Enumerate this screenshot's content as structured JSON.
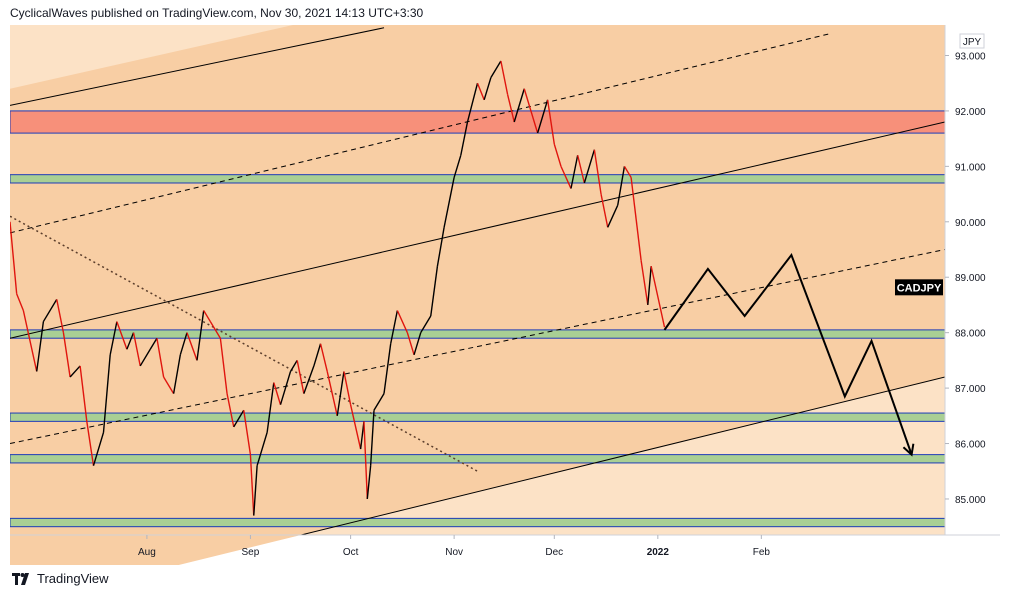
{
  "header": {
    "attribution": "CyclicalWaves published on TradingView.com, Nov 30, 2021 14:13 UTC+3:30"
  },
  "footer": {
    "brand": "TradingView",
    "logo_icon": "tradingview-logo-icon"
  },
  "colors": {
    "bg_light": "#fce2c6",
    "bg_mid": "#f8ceA4",
    "red_zone": "#f7907a",
    "green_zone": "#a9cf94",
    "zone_border": "#1d3bb8",
    "price_line": "#000000",
    "candle_up": "#000000",
    "candle_down": "#e0150e",
    "symbol_badge_bg": "#000000",
    "symbol_badge_fg": "#ffffff"
  },
  "chart_data": {
    "type": "line",
    "symbol": "CADJPY",
    "currency": "JPY",
    "price_scale": {
      "ticks": [
        "93.000",
        "92.000",
        "91.000",
        "90.000",
        "89.000",
        "88.000",
        "87.000",
        "86.000",
        "85.000"
      ],
      "tick_values": [
        93,
        92,
        91,
        90,
        89,
        88,
        87,
        86,
        85
      ]
    },
    "time_axis": {
      "labels": [
        "Aug",
        "Sep",
        "Oct",
        "Nov",
        "Dec",
        "2022",
        "Feb"
      ],
      "label_bold": [
        false,
        false,
        false,
        false,
        false,
        true,
        false
      ]
    },
    "price_series": [
      [
        "2021-06-21",
        90.0
      ],
      [
        "2021-06-23",
        88.7
      ],
      [
        "2021-06-25",
        88.4
      ],
      [
        "2021-06-29",
        87.3
      ],
      [
        "2021-07-01",
        88.2
      ],
      [
        "2021-07-05",
        88.6
      ],
      [
        "2021-07-07",
        88.0
      ],
      [
        "2021-07-09",
        87.2
      ],
      [
        "2021-07-12",
        87.4
      ],
      [
        "2021-07-14",
        86.4
      ],
      [
        "2021-07-16",
        85.6
      ],
      [
        "2021-07-19",
        86.2
      ],
      [
        "2021-07-21",
        87.6
      ],
      [
        "2021-07-23",
        88.2
      ],
      [
        "2021-07-26",
        87.7
      ],
      [
        "2021-07-28",
        88.0
      ],
      [
        "2021-07-30",
        87.4
      ],
      [
        "2021-08-02",
        87.7
      ],
      [
        "2021-08-04",
        87.9
      ],
      [
        "2021-08-06",
        87.2
      ],
      [
        "2021-08-09",
        86.9
      ],
      [
        "2021-08-11",
        87.6
      ],
      [
        "2021-08-13",
        88.0
      ],
      [
        "2021-08-16",
        87.5
      ],
      [
        "2021-08-18",
        88.4
      ],
      [
        "2021-08-20",
        88.2
      ],
      [
        "2021-08-23",
        87.9
      ],
      [
        "2021-08-25",
        86.9
      ],
      [
        "2021-08-27",
        86.3
      ],
      [
        "2021-08-30",
        86.6
      ],
      [
        "2021-09-01",
        85.8
      ],
      [
        "2021-09-02",
        84.7
      ],
      [
        "2021-09-03",
        85.6
      ],
      [
        "2021-09-06",
        86.2
      ],
      [
        "2021-09-08",
        87.1
      ],
      [
        "2021-09-10",
        86.7
      ],
      [
        "2021-09-13",
        87.3
      ],
      [
        "2021-09-15",
        87.5
      ],
      [
        "2021-09-17",
        86.9
      ],
      [
        "2021-09-20",
        87.4
      ],
      [
        "2021-09-22",
        87.8
      ],
      [
        "2021-09-24",
        87.3
      ],
      [
        "2021-09-27",
        86.5
      ],
      [
        "2021-09-29",
        87.3
      ],
      [
        "2021-10-01",
        86.7
      ],
      [
        "2021-10-04",
        85.9
      ],
      [
        "2021-10-05",
        86.4
      ],
      [
        "2021-10-06",
        85.0
      ],
      [
        "2021-10-07",
        85.6
      ],
      [
        "2021-10-08",
        86.6
      ],
      [
        "2021-10-11",
        86.9
      ],
      [
        "2021-10-13",
        87.8
      ],
      [
        "2021-10-15",
        88.4
      ],
      [
        "2021-10-18",
        88.0
      ],
      [
        "2021-10-20",
        87.6
      ],
      [
        "2021-10-22",
        88.0
      ],
      [
        "2021-10-25",
        88.3
      ],
      [
        "2021-10-27",
        89.2
      ],
      [
        "2021-10-29",
        89.9
      ],
      [
        "2021-11-01",
        90.8
      ],
      [
        "2021-11-03",
        91.2
      ],
      [
        "2021-11-05",
        91.8
      ],
      [
        "2021-11-08",
        92.5
      ],
      [
        "2021-11-10",
        92.2
      ],
      [
        "2021-11-12",
        92.6
      ],
      [
        "2021-11-15",
        92.9
      ],
      [
        "2021-11-17",
        92.3
      ],
      [
        "2021-11-19",
        91.8
      ],
      [
        "2021-11-22",
        92.4
      ],
      [
        "2021-11-24",
        92.0
      ],
      [
        "2021-11-26",
        91.6
      ],
      [
        "2021-11-29",
        92.2
      ],
      [
        "2021-12-01",
        91.4
      ],
      [
        "2021-12-03",
        91.0
      ],
      [
        "2021-12-06",
        90.6
      ],
      [
        "2021-12-08",
        91.2
      ],
      [
        "2021-12-10",
        90.7
      ],
      [
        "2021-12-13",
        91.3
      ],
      [
        "2021-12-15",
        90.5
      ],
      [
        "2021-12-17",
        89.9
      ],
      [
        "2021-12-20",
        90.3
      ],
      [
        "2021-12-22",
        91.0
      ],
      [
        "2021-12-24",
        90.8
      ],
      [
        "2021-12-27",
        89.3
      ],
      [
        "2021-12-29",
        88.5
      ],
      [
        "2021-12-30",
        89.2
      ],
      [
        "2022-01-03",
        88.1
      ]
    ],
    "projection": [
      [
        "2022-01-03",
        88.05
      ],
      [
        "2022-01-16",
        89.15
      ],
      [
        "2022-01-27",
        88.3
      ],
      [
        "2022-02-10",
        89.4
      ],
      [
        "2022-02-26",
        86.85
      ],
      [
        "2022-03-06",
        87.85
      ],
      [
        "2022-03-18",
        85.8
      ]
    ],
    "zones": [
      {
        "label": "resistance",
        "color": "red",
        "from": 91.6,
        "to": 92.0
      },
      {
        "label": "support-91",
        "color": "green",
        "from": 90.7,
        "to": 90.85
      },
      {
        "label": "support-88",
        "color": "green",
        "from": 87.9,
        "to": 88.05
      },
      {
        "label": "support-86.5",
        "color": "green",
        "from": 86.4,
        "to": 86.55
      },
      {
        "label": "support-85.8",
        "color": "green",
        "from": 85.65,
        "to": 85.8
      },
      {
        "label": "support-84.6",
        "color": "green",
        "from": 84.5,
        "to": 84.65
      }
    ],
    "trendlines": [
      {
        "style": "solid",
        "from": [
          "2021-06-21",
          92.1
        ],
        "to": [
          "2021-10-11",
          93.5
        ]
      },
      {
        "style": "solid",
        "from": [
          "2021-06-21",
          87.9
        ],
        "to": [
          "2022-03-28",
          91.8
        ]
      },
      {
        "style": "solid",
        "from": [
          "2021-09-06",
          84.2
        ],
        "to": [
          "2022-03-28",
          87.2
        ]
      },
      {
        "style": "dashed",
        "from": [
          "2021-06-21",
          89.8
        ],
        "to": [
          "2022-02-22",
          93.4
        ]
      },
      {
        "style": "dashed",
        "from": [
          "2021-06-21",
          86.0
        ],
        "to": [
          "2022-03-28",
          89.5
        ]
      },
      {
        "style": "dotted",
        "from": [
          "2021-06-21",
          90.1
        ],
        "to": [
          "2021-11-08",
          85.5
        ]
      }
    ],
    "last_price_label": "CADJPY",
    "ylim": [
      84.35,
      93.55
    ],
    "grid": false
  }
}
